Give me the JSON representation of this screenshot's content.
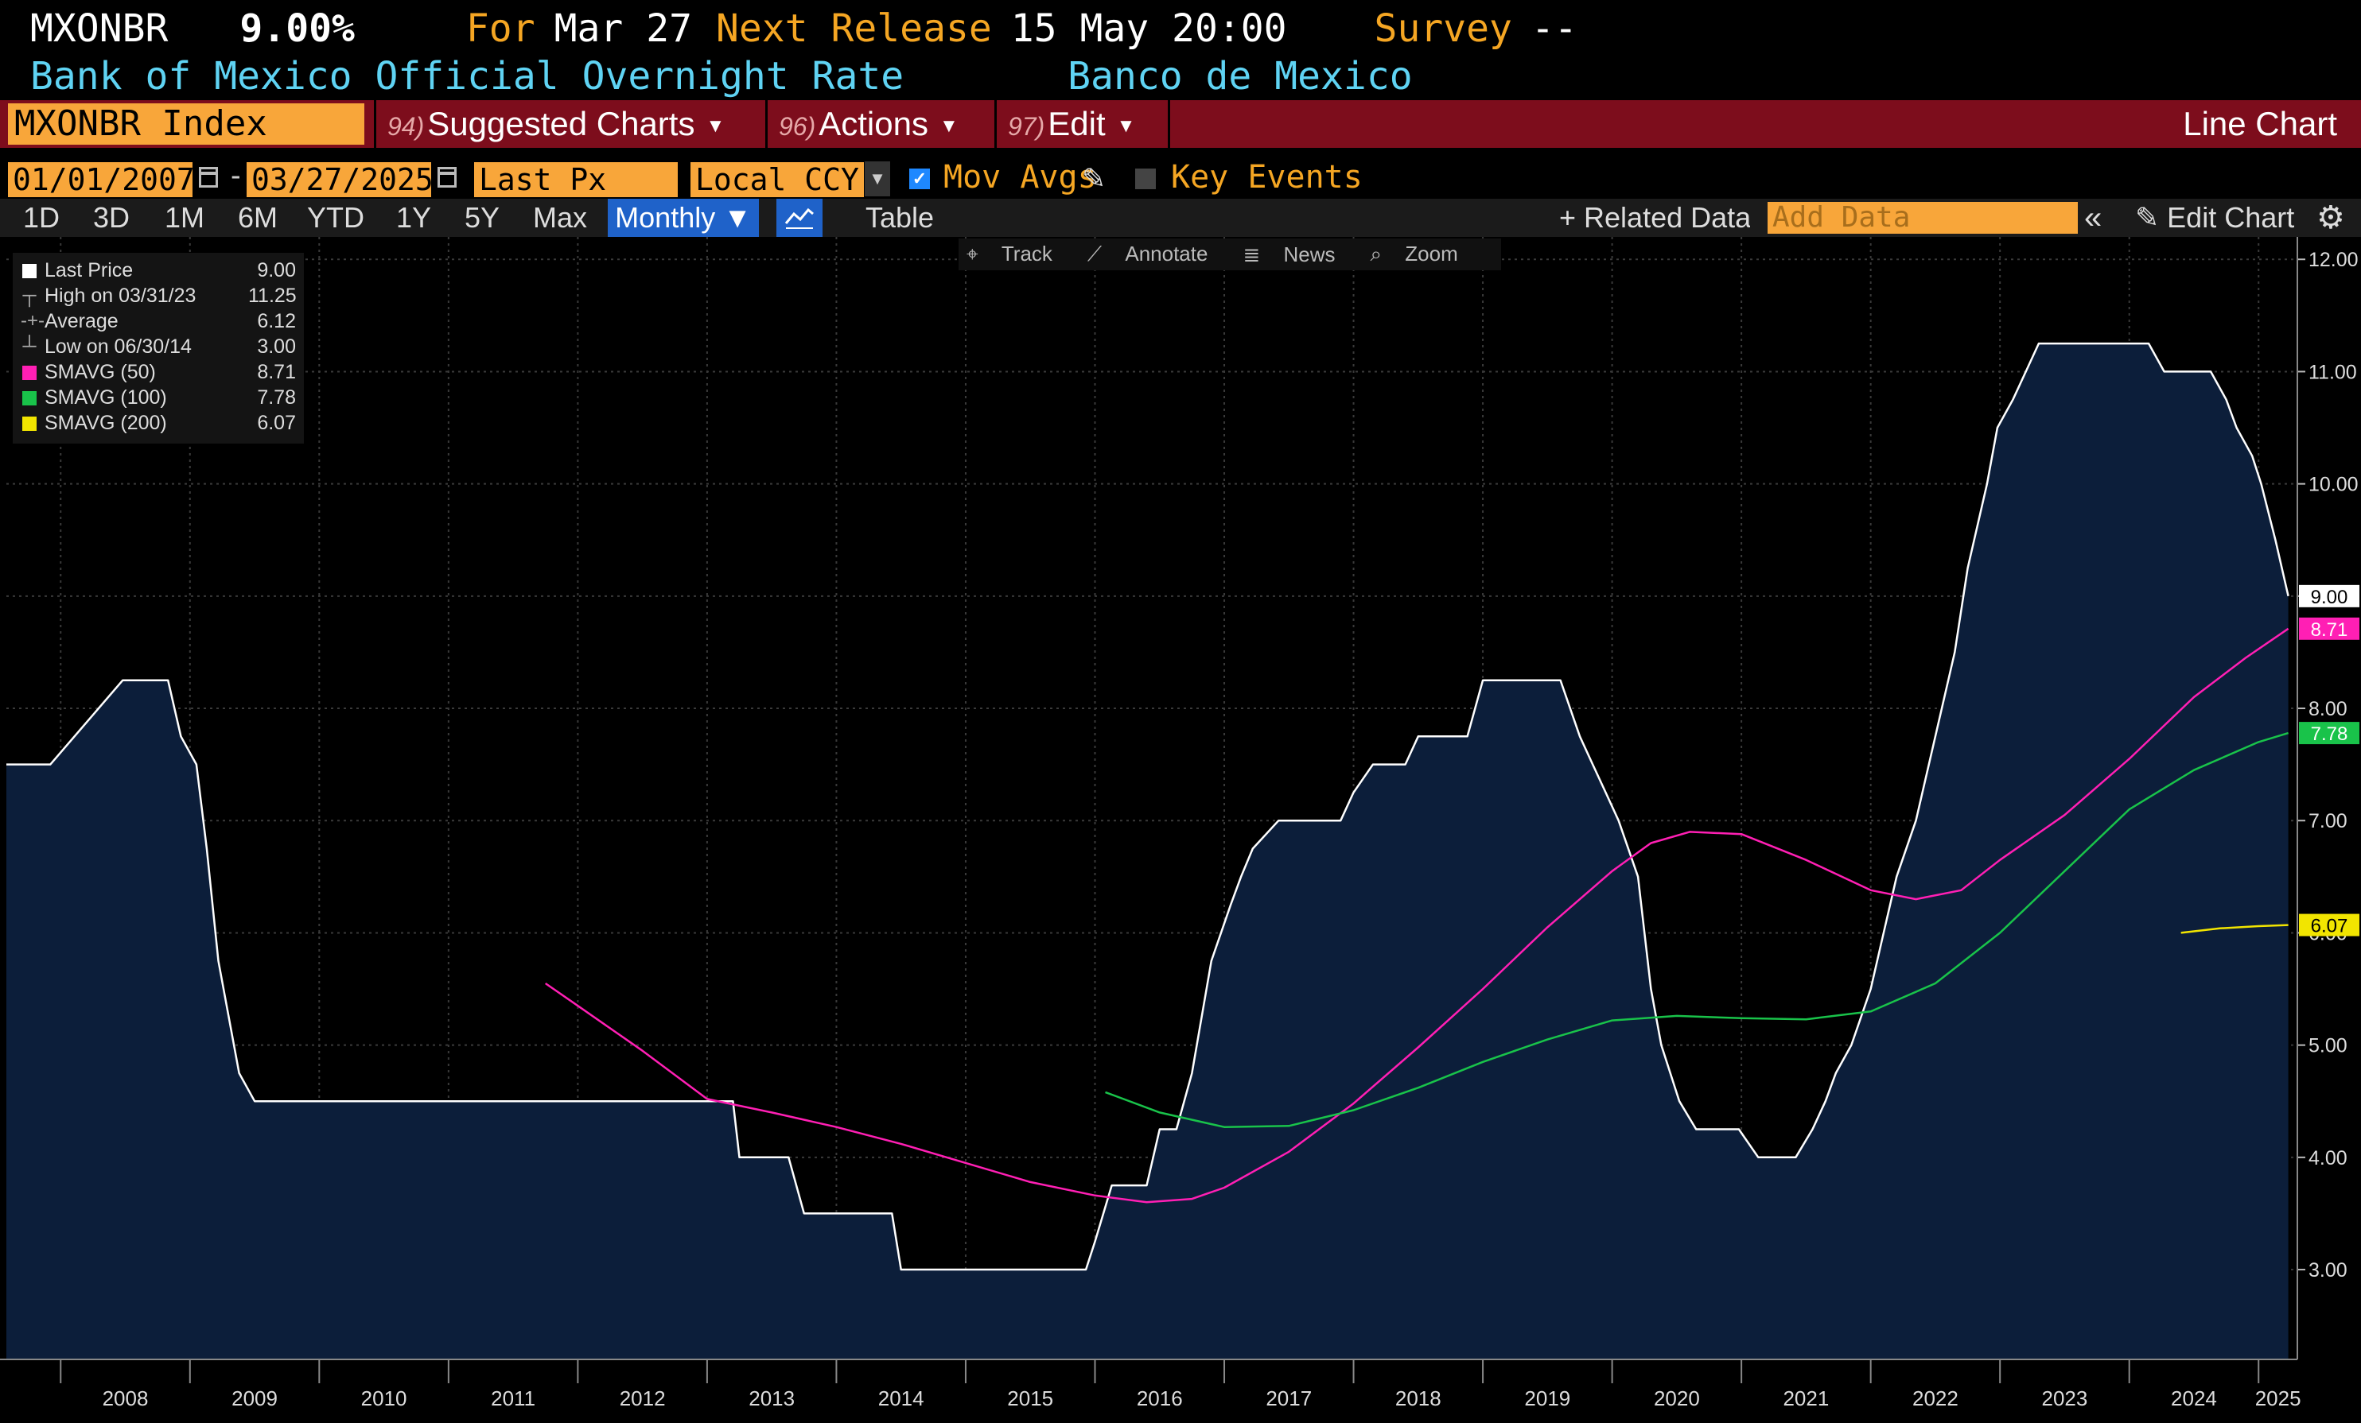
{
  "header": {
    "ticker": "MXONBR",
    "last_value": "9.00%",
    "for_label": "For",
    "for_date": "Mar 27",
    "next_release_label": "Next Release",
    "next_release_value": "15 May 20:00",
    "survey_label": "Survey",
    "survey_value": "--",
    "description": "Bank of Mexico Official Overnight Rate",
    "source": "Banco de Mexico"
  },
  "toolbar": {
    "security": "MXONBR Index",
    "suggested_num": "94)",
    "suggested_label": "Suggested Charts",
    "actions_num": "96)",
    "actions_label": "Actions",
    "edit_num": "97)",
    "edit_label": "Edit",
    "chart_type": "Line Chart"
  },
  "controls": {
    "start_date": "01/01/2007",
    "end_date": "03/27/2025",
    "date_sep": "-",
    "field": "Last Px",
    "currency": "Local CCY",
    "mov_avgs_label": "Mov Avgs",
    "key_events_label": "Key Events",
    "ranges": [
      "1D",
      "3D",
      "1M",
      "6M",
      "YTD",
      "1Y",
      "5Y",
      "Max"
    ],
    "periodicity": "Monthly ▼",
    "table_label": "Table",
    "related_data": "+ Related Data",
    "add_data_placeholder": "Add Data",
    "edit_chart": "Edit Chart",
    "chart_tools": [
      "Track",
      "Annotate",
      "News",
      "Zoom"
    ]
  },
  "legend": [
    {
      "label": "Last Price",
      "value": "9.00",
      "color": "#ffffff",
      "marker": "square"
    },
    {
      "label": "High on 03/31/23",
      "value": "11.25",
      "color": "#aaaaaa",
      "marker": "high"
    },
    {
      "label": "Average",
      "value": "6.12",
      "color": "#aaaaaa",
      "marker": "avg"
    },
    {
      "label": "Low on 06/30/14",
      "value": "3.00",
      "color": "#aaaaaa",
      "marker": "low"
    },
    {
      "label": "SMAVG (50)",
      "value": "8.71",
      "color": "#ff1fb4",
      "marker": "square"
    },
    {
      "label": "SMAVG (100)",
      "value": "7.78",
      "color": "#19c34a",
      "marker": "square"
    },
    {
      "label": "SMAVG (200)",
      "value": "6.07",
      "color": "#f2e500",
      "marker": "square"
    }
  ],
  "chart_data": {
    "type": "line",
    "ylim": [
      2.2,
      12.2
    ],
    "xlim": [
      2007.58,
      2025.3
    ],
    "y_ticks": [
      "3.00",
      "4.00",
      "5.00",
      "6.00",
      "7.00",
      "8.00",
      "9.00",
      "10.00",
      "11.00",
      "12.00"
    ],
    "x_ticks": [
      "2008",
      "2009",
      "2010",
      "2011",
      "2012",
      "2013",
      "2014",
      "2015",
      "2016",
      "2017",
      "2018",
      "2019",
      "2020",
      "2021",
      "2022",
      "2023",
      "2024",
      "2025"
    ],
    "grid": true,
    "legend_position": "top-left",
    "series": [
      {
        "name": "Last Price",
        "color": "#ffffff",
        "fill": "#0c1e3a",
        "last_label": "9.00",
        "points": [
          [
            2007.58,
            7.5
          ],
          [
            2007.92,
            7.5
          ],
          [
            2008.48,
            8.25
          ],
          [
            2008.83,
            8.25
          ],
          [
            2008.93,
            7.75
          ],
          [
            2009.05,
            7.5
          ],
          [
            2009.13,
            6.75
          ],
          [
            2009.22,
            5.75
          ],
          [
            2009.38,
            4.75
          ],
          [
            2009.5,
            4.5
          ],
          [
            2013.2,
            4.5
          ],
          [
            2013.25,
            4.0
          ],
          [
            2013.63,
            4.0
          ],
          [
            2013.75,
            3.5
          ],
          [
            2014.43,
            3.5
          ],
          [
            2014.5,
            3.0
          ],
          [
            2015.93,
            3.0
          ],
          [
            2016.0,
            3.25
          ],
          [
            2016.13,
            3.75
          ],
          [
            2016.4,
            3.75
          ],
          [
            2016.5,
            4.25
          ],
          [
            2016.63,
            4.25
          ],
          [
            2016.75,
            4.75
          ],
          [
            2016.9,
            5.75
          ],
          [
            2017.05,
            6.25
          ],
          [
            2017.13,
            6.5
          ],
          [
            2017.22,
            6.75
          ],
          [
            2017.42,
            7.0
          ],
          [
            2017.9,
            7.0
          ],
          [
            2018.0,
            7.25
          ],
          [
            2018.15,
            7.5
          ],
          [
            2018.4,
            7.5
          ],
          [
            2018.5,
            7.75
          ],
          [
            2018.88,
            7.75
          ],
          [
            2019.0,
            8.25
          ],
          [
            2019.6,
            8.25
          ],
          [
            2019.75,
            7.75
          ],
          [
            2019.85,
            7.5
          ],
          [
            2019.95,
            7.25
          ],
          [
            2020.05,
            7.0
          ],
          [
            2020.2,
            6.5
          ],
          [
            2020.3,
            5.5
          ],
          [
            2020.38,
            5.0
          ],
          [
            2020.52,
            4.5
          ],
          [
            2020.65,
            4.25
          ],
          [
            2020.98,
            4.25
          ],
          [
            2021.13,
            4.0
          ],
          [
            2021.42,
            4.0
          ],
          [
            2021.55,
            4.25
          ],
          [
            2021.65,
            4.5
          ],
          [
            2021.73,
            4.75
          ],
          [
            2021.85,
            5.0
          ],
          [
            2022.0,
            5.5
          ],
          [
            2022.1,
            6.0
          ],
          [
            2022.2,
            6.5
          ],
          [
            2022.35,
            7.0
          ],
          [
            2022.5,
            7.75
          ],
          [
            2022.65,
            8.5
          ],
          [
            2022.75,
            9.25
          ],
          [
            2022.9,
            10.0
          ],
          [
            2022.98,
            10.5
          ],
          [
            2023.1,
            10.75
          ],
          [
            2023.2,
            11.0
          ],
          [
            2023.3,
            11.25
          ],
          [
            2024.15,
            11.25
          ],
          [
            2024.27,
            11.0
          ],
          [
            2024.63,
            11.0
          ],
          [
            2024.75,
            10.75
          ],
          [
            2024.83,
            10.5
          ],
          [
            2024.95,
            10.25
          ],
          [
            2025.02,
            10.0
          ],
          [
            2025.13,
            9.5
          ],
          [
            2025.23,
            9.0
          ]
        ]
      },
      {
        "name": "SMAVG (50)",
        "color": "#ff1fb4",
        "last_label": "8.71",
        "points": [
          [
            2011.75,
            5.55
          ],
          [
            2012.0,
            5.35
          ],
          [
            2012.5,
            4.95
          ],
          [
            2013.0,
            4.52
          ],
          [
            2013.5,
            4.4
          ],
          [
            2014.0,
            4.27
          ],
          [
            2014.5,
            4.12
          ],
          [
            2015.0,
            3.95
          ],
          [
            2015.5,
            3.78
          ],
          [
            2016.0,
            3.66
          ],
          [
            2016.4,
            3.6
          ],
          [
            2016.75,
            3.63
          ],
          [
            2017.0,
            3.73
          ],
          [
            2017.5,
            4.05
          ],
          [
            2018.0,
            4.48
          ],
          [
            2018.5,
            4.98
          ],
          [
            2019.0,
            5.5
          ],
          [
            2019.5,
            6.05
          ],
          [
            2020.0,
            6.55
          ],
          [
            2020.3,
            6.8
          ],
          [
            2020.6,
            6.9
          ],
          [
            2021.0,
            6.88
          ],
          [
            2021.5,
            6.65
          ],
          [
            2022.0,
            6.38
          ],
          [
            2022.35,
            6.3
          ],
          [
            2022.7,
            6.38
          ],
          [
            2023.0,
            6.65
          ],
          [
            2023.5,
            7.05
          ],
          [
            2024.0,
            7.55
          ],
          [
            2024.5,
            8.1
          ],
          [
            2024.9,
            8.45
          ],
          [
            2025.23,
            8.71
          ]
        ]
      },
      {
        "name": "SMAVG (100)",
        "color": "#19c34a",
        "last_label": "7.78",
        "points": [
          [
            2016.08,
            4.58
          ],
          [
            2016.5,
            4.4
          ],
          [
            2017.0,
            4.27
          ],
          [
            2017.5,
            4.28
          ],
          [
            2018.0,
            4.42
          ],
          [
            2018.5,
            4.62
          ],
          [
            2019.0,
            4.85
          ],
          [
            2019.5,
            5.05
          ],
          [
            2020.0,
            5.22
          ],
          [
            2020.5,
            5.26
          ],
          [
            2021.0,
            5.24
          ],
          [
            2021.5,
            5.23
          ],
          [
            2022.0,
            5.3
          ],
          [
            2022.5,
            5.55
          ],
          [
            2023.0,
            6.0
          ],
          [
            2023.5,
            6.55
          ],
          [
            2024.0,
            7.1
          ],
          [
            2024.5,
            7.45
          ],
          [
            2025.0,
            7.7
          ],
          [
            2025.23,
            7.78
          ]
        ]
      },
      {
        "name": "SMAVG (200)",
        "color": "#f2e500",
        "last_label": "6.07",
        "points": [
          [
            2024.4,
            6.0
          ],
          [
            2024.7,
            6.04
          ],
          [
            2025.0,
            6.06
          ],
          [
            2025.23,
            6.07
          ]
        ]
      }
    ]
  }
}
